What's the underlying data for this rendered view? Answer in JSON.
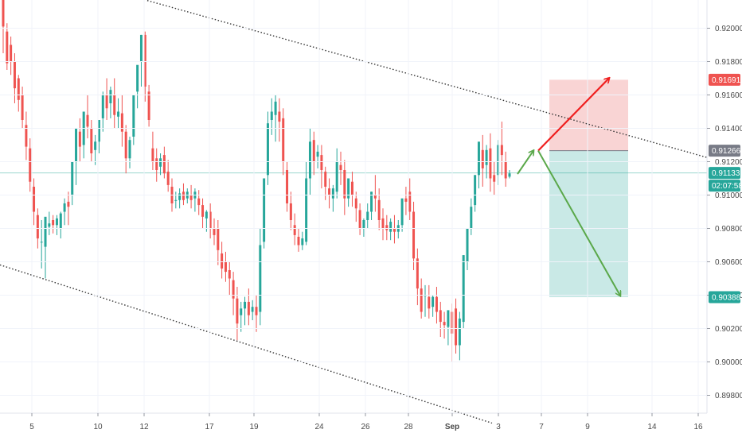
{
  "chart_data": {
    "type": "candlestick",
    "y_ticks": [
      "0.92000",
      "0.91800",
      "0.91600",
      "0.91400",
      "0.91200",
      "0.91000",
      "0.90800",
      "0.90600",
      "0.90400",
      "0.90200",
      "0.90000",
      "0.89800"
    ],
    "x_ticks": [
      "5",
      "10",
      "12",
      "17",
      "19",
      "24",
      "26",
      "28",
      "Sep",
      "3",
      "7",
      "9",
      "14",
      "16"
    ],
    "ylim": [
      0.8968,
      0.9226
    ],
    "price_badges": [
      {
        "value": "0.91691",
        "color": "#ef5350"
      },
      {
        "value": "0.91266",
        "color": "#787b86"
      },
      {
        "value": "0.91133",
        "color": "#26a69a"
      },
      {
        "value": "02:07:58",
        "color": "#26a69a"
      },
      {
        "value": "0.90388",
        "color": "#26a69a"
      }
    ],
    "position": {
      "entry": 0.91266,
      "stop": 0.91691,
      "target": 0.90388
    },
    "current_price": 0.91133,
    "colors": {
      "up": "#26a69a",
      "down": "#ef5350",
      "stop_zone": "#f7c5c5",
      "target_zone": "#b2dfdb",
      "arrow_up": "#ef1f1f",
      "arrow_down": "#5aa84a",
      "channel": "#333333"
    },
    "channel_lines": [
      {
        "from": [
          "5",
          "0.9236"
        ],
        "to": [
          "16",
          "0.9124"
        ]
      },
      {
        "from": [
          "5",
          "0.9052"
        ],
        "to": [
          "Sep",
          "0.8971"
        ]
      }
    ],
    "candles": [
      [
        0.9223,
        0.9221,
        0.9201,
        0.9185
      ],
      [
        0.9203,
        0.9198,
        0.9179,
        0.9175
      ],
      [
        0.9195,
        0.919,
        0.918,
        0.9172
      ],
      [
        0.9185,
        0.918,
        0.9164,
        0.9155
      ],
      [
        0.9172,
        0.917,
        0.9157,
        0.915
      ],
      [
        0.9165,
        0.916,
        0.9145,
        0.914
      ],
      [
        0.915,
        0.9142,
        0.9129,
        0.9121
      ],
      [
        0.9134,
        0.9128,
        0.9108,
        0.9102
      ],
      [
        0.911,
        0.9105,
        0.909,
        0.9082
      ],
      [
        0.9092,
        0.9088,
        0.9074,
        0.9068
      ],
      [
        0.9085,
        0.9072,
        0.9072,
        0.9056
      ],
      [
        0.9075,
        0.9069,
        0.9087,
        0.905
      ],
      [
        0.909,
        0.9081,
        0.9083,
        0.9076
      ],
      [
        0.9088,
        0.9085,
        0.9082,
        0.9077
      ],
      [
        0.9088,
        0.9082,
        0.9086,
        0.9076
      ],
      [
        0.909,
        0.908,
        0.9089,
        0.9074
      ],
      [
        0.9098,
        0.909,
        0.9095,
        0.9082
      ],
      [
        0.9102,
        0.9096,
        0.9093,
        0.9082
      ],
      [
        0.911,
        0.91,
        0.912,
        0.9094
      ],
      [
        0.9134,
        0.912,
        0.914,
        0.9106
      ],
      [
        0.9146,
        0.9138,
        0.9129,
        0.912
      ],
      [
        0.9138,
        0.913,
        0.915,
        0.9122
      ],
      [
        0.916,
        0.9148,
        0.9141,
        0.9134
      ],
      [
        0.9145,
        0.914,
        0.9125,
        0.912
      ],
      [
        0.9136,
        0.9127,
        0.9132,
        0.9118
      ],
      [
        0.9143,
        0.9132,
        0.9145,
        0.9125
      ],
      [
        0.9162,
        0.9146,
        0.916,
        0.9138
      ],
      [
        0.917,
        0.916,
        0.9152,
        0.9145
      ],
      [
        0.9165,
        0.9155,
        0.9163,
        0.9146
      ],
      [
        0.917,
        0.916,
        0.9148,
        0.914
      ],
      [
        0.9158,
        0.9147,
        0.915,
        0.914
      ],
      [
        0.916,
        0.9149,
        0.9138,
        0.9129
      ],
      [
        0.9142,
        0.9138,
        0.9122,
        0.9113
      ],
      [
        0.9135,
        0.9122,
        0.9133,
        0.9116
      ],
      [
        0.9158,
        0.9135,
        0.916,
        0.913
      ],
      [
        0.9172,
        0.9162,
        0.9178,
        0.9152
      ],
      [
        0.9196,
        0.918,
        0.9196,
        0.9165
      ],
      [
        0.9198,
        0.9196,
        0.9165,
        0.9156
      ],
      [
        0.9166,
        0.9162,
        0.9145,
        0.9141
      ],
      [
        0.9138,
        0.9128,
        0.912,
        0.9115
      ],
      [
        0.9128,
        0.9122,
        0.9115,
        0.9108
      ],
      [
        0.9125,
        0.9117,
        0.9122,
        0.9112
      ],
      [
        0.9129,
        0.9124,
        0.9113,
        0.911
      ],
      [
        0.9121,
        0.9114,
        0.9106,
        0.9102
      ],
      [
        0.911,
        0.9105,
        0.9095,
        0.909
      ],
      [
        0.9102,
        0.9097,
        0.9097,
        0.9092
      ],
      [
        0.9104,
        0.9097,
        0.9101,
        0.9092
      ],
      [
        0.9107,
        0.9102,
        0.9097,
        0.9094
      ],
      [
        0.9104,
        0.9098,
        0.9102,
        0.9095
      ],
      [
        0.9106,
        0.91,
        0.9097,
        0.9092
      ],
      [
        0.9104,
        0.9098,
        0.9102,
        0.909
      ],
      [
        0.9103,
        0.9098,
        0.9094,
        0.9088
      ],
      [
        0.9098,
        0.9094,
        0.9087,
        0.908
      ],
      [
        0.9091,
        0.9086,
        0.909,
        0.9078
      ],
      [
        0.9095,
        0.909,
        0.908,
        0.9074
      ],
      [
        0.9086,
        0.908,
        0.9076,
        0.907
      ],
      [
        0.9085,
        0.908,
        0.9067,
        0.9058
      ],
      [
        0.9072,
        0.9065,
        0.9056,
        0.905
      ],
      [
        0.9066,
        0.906,
        0.9054,
        0.9048
      ],
      [
        0.906,
        0.9055,
        0.905,
        0.904
      ],
      [
        0.9054,
        0.9049,
        0.9038,
        0.9028
      ],
      [
        0.9045,
        0.9038,
        0.9023,
        0.9013
      ],
      [
        0.9036,
        0.9028,
        0.9032,
        0.9018
      ],
      [
        0.9039,
        0.9032,
        0.9036,
        0.9022
      ],
      [
        0.9044,
        0.9036,
        0.9028,
        0.9022
      ],
      [
        0.9037,
        0.903,
        0.9033,
        0.9025
      ],
      [
        0.904,
        0.9033,
        0.9028,
        0.9018
      ],
      [
        0.908,
        0.903,
        0.907,
        0.9022
      ],
      [
        0.9108,
        0.9072,
        0.911,
        0.9068
      ],
      [
        0.915,
        0.9112,
        0.9143,
        0.9106
      ],
      [
        0.9158,
        0.9145,
        0.915,
        0.9136
      ],
      [
        0.916,
        0.9148,
        0.9156,
        0.9132
      ],
      [
        0.9158,
        0.915,
        0.9144,
        0.9132
      ],
      [
        0.9152,
        0.9146,
        0.912,
        0.9112
      ],
      [
        0.912,
        0.9115,
        0.9095,
        0.909
      ],
      [
        0.9102,
        0.9095,
        0.9085,
        0.9079
      ],
      [
        0.9089,
        0.9082,
        0.9076,
        0.907
      ],
      [
        0.908,
        0.9075,
        0.907,
        0.9066
      ],
      [
        0.9078,
        0.907,
        0.9074,
        0.9067
      ],
      [
        0.912,
        0.9072,
        0.911,
        0.907
      ],
      [
        0.914,
        0.911,
        0.9132,
        0.91
      ],
      [
        0.9138,
        0.9133,
        0.912,
        0.9112
      ],
      [
        0.913,
        0.9123,
        0.9126,
        0.9116
      ],
      [
        0.913,
        0.9124,
        0.9115,
        0.9104
      ],
      [
        0.9117,
        0.9114,
        0.9105,
        0.9097
      ],
      [
        0.911,
        0.9104,
        0.91,
        0.9092
      ],
      [
        0.9106,
        0.9098,
        0.9104,
        0.909
      ],
      [
        0.9128,
        0.9102,
        0.912,
        0.9098
      ],
      [
        0.9126,
        0.9118,
        0.9115,
        0.9106
      ],
      [
        0.9121,
        0.9115,
        0.9098,
        0.9088
      ],
      [
        0.9108,
        0.9098,
        0.911,
        0.9093
      ],
      [
        0.9114,
        0.9108,
        0.91,
        0.9093
      ],
      [
        0.9102,
        0.9098,
        0.9092,
        0.9084
      ],
      [
        0.9095,
        0.9091,
        0.908,
        0.9076
      ],
      [
        0.9086,
        0.908,
        0.9085,
        0.9075
      ],
      [
        0.9095,
        0.9085,
        0.909,
        0.908
      ],
      [
        0.9102,
        0.909,
        0.9102,
        0.9085
      ],
      [
        0.9112,
        0.91,
        0.9098,
        0.909
      ],
      [
        0.9104,
        0.9097,
        0.9085,
        0.9079
      ],
      [
        0.9092,
        0.9086,
        0.908,
        0.9073
      ],
      [
        0.9088,
        0.9082,
        0.9079,
        0.9073
      ],
      [
        0.9086,
        0.9078,
        0.9084,
        0.9073
      ],
      [
        0.9088,
        0.908,
        0.9078,
        0.9071
      ],
      [
        0.9085,
        0.9078,
        0.9082,
        0.9074
      ],
      [
        0.9088,
        0.9082,
        0.9098,
        0.9078
      ],
      [
        0.9105,
        0.9098,
        0.9096,
        0.9088
      ],
      [
        0.911,
        0.9102,
        0.909,
        0.9085
      ],
      [
        0.9096,
        0.909,
        0.9062,
        0.9055
      ],
      [
        0.9068,
        0.9062,
        0.9044,
        0.9034
      ],
      [
        0.905,
        0.9044,
        0.903,
        0.9026
      ],
      [
        0.9046,
        0.904,
        0.904,
        0.9027
      ],
      [
        0.9046,
        0.9039,
        0.9032,
        0.9026
      ],
      [
        0.904,
        0.9033,
        0.9039,
        0.9027
      ],
      [
        0.9045,
        0.9039,
        0.903,
        0.9023
      ],
      [
        0.9036,
        0.9031,
        0.9024,
        0.9015
      ],
      [
        0.903,
        0.9024,
        0.9022,
        0.9014
      ],
      [
        0.9025,
        0.9021,
        0.9031,
        0.901
      ],
      [
        0.9035,
        0.903,
        0.9017,
        0.9
      ],
      [
        0.9038,
        0.9032,
        0.901,
        0.9005
      ],
      [
        0.903,
        0.901,
        0.9026,
        0.9001
      ],
      [
        0.9064,
        0.9024,
        0.9064,
        0.902
      ],
      [
        0.907,
        0.906,
        0.908,
        0.9055
      ],
      [
        0.9098,
        0.908,
        0.9093,
        0.9076
      ],
      [
        0.9112,
        0.9094,
        0.9112,
        0.909
      ],
      [
        0.9118,
        0.9112,
        0.9132,
        0.9104
      ],
      [
        0.9136,
        0.9127,
        0.9116,
        0.9105
      ],
      [
        0.913,
        0.9118,
        0.9127,
        0.911
      ],
      [
        0.9137,
        0.9128,
        0.911,
        0.9102
      ],
      [
        0.912,
        0.9112,
        0.9108,
        0.91
      ],
      [
        0.9133,
        0.9112,
        0.913,
        0.9106
      ],
      [
        0.9144,
        0.913,
        0.9124,
        0.9112
      ],
      [
        0.9126,
        0.912,
        0.911,
        0.9105
      ],
      [
        0.9115,
        0.9111,
        0.9113,
        0.911
      ]
    ]
  }
}
